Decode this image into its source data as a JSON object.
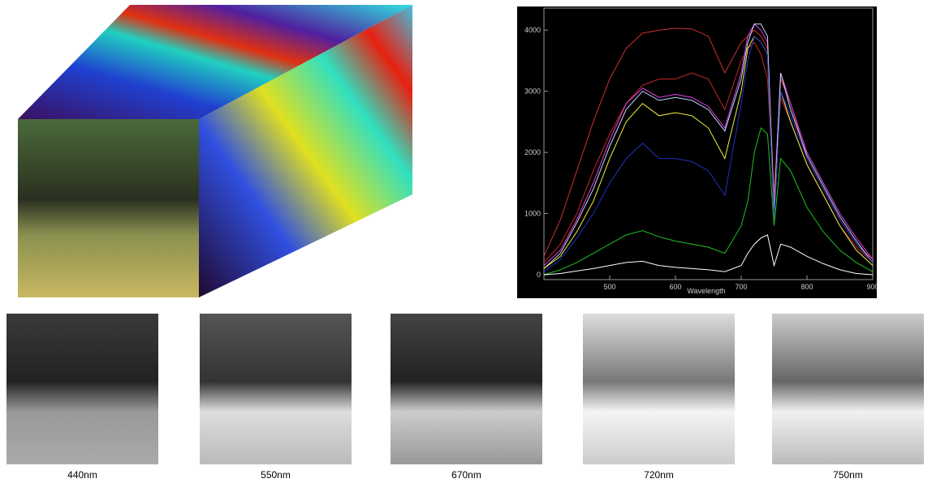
{
  "chart_data": {
    "type": "line",
    "xlabel": "Wavelength",
    "x": [
      400,
      425,
      450,
      475,
      500,
      525,
      550,
      575,
      600,
      625,
      650,
      675,
      700,
      710,
      720,
      730,
      740,
      750,
      760,
      775,
      800,
      825,
      850,
      875,
      900
    ],
    "series": [
      {
        "color": "#d03030",
        "values": [
          300,
          900,
          1700,
          2500,
          3200,
          3700,
          3950,
          4000,
          4030,
          4020,
          3900,
          3300,
          3800,
          3900,
          4000,
          3900,
          3700,
          1300,
          3200,
          2800,
          1900,
          1400,
          900,
          500,
          250
        ]
      },
      {
        "color": "#c02828",
        "values": [
          200,
          500,
          1000,
          1700,
          2300,
          2800,
          3100,
          3200,
          3200,
          3300,
          3200,
          2700,
          3500,
          3700,
          3800,
          3600,
          3200,
          1200,
          2900,
          2500,
          1800,
          1300,
          800,
          450,
          200
        ]
      },
      {
        "color": "#e040e0",
        "values": [
          150,
          400,
          900,
          1500,
          2200,
          2800,
          3050,
          2900,
          2950,
          2900,
          2750,
          2400,
          3300,
          3900,
          4100,
          4000,
          3800,
          1100,
          3300,
          2800,
          2000,
          1500,
          1000,
          600,
          250
        ]
      },
      {
        "color": "#c0d8ff",
        "values": [
          100,
          350,
          850,
          1400,
          2100,
          2700,
          3000,
          2850,
          2900,
          2850,
          2700,
          2350,
          3200,
          3800,
          4100,
          4100,
          3900,
          1000,
          3300,
          2700,
          1950,
          1450,
          950,
          550,
          200
        ]
      },
      {
        "color": "#f0f040",
        "values": [
          100,
          300,
          700,
          1200,
          1900,
          2500,
          2800,
          2600,
          2650,
          2600,
          2400,
          1900,
          3000,
          3700,
          3900,
          3800,
          3600,
          900,
          3000,
          2500,
          1800,
          1300,
          800,
          400,
          150
        ]
      },
      {
        "color": "#2030c0",
        "values": [
          50,
          250,
          600,
          1000,
          1500,
          1900,
          2150,
          1900,
          1900,
          1850,
          1700,
          1300,
          2800,
          3500,
          3900,
          3800,
          3600,
          900,
          3000,
          2600,
          1900,
          1400,
          900,
          500,
          200
        ]
      },
      {
        "color": "#20c020",
        "values": [
          0,
          80,
          200,
          350,
          500,
          650,
          720,
          620,
          550,
          500,
          450,
          350,
          800,
          1200,
          2000,
          2400,
          2300,
          800,
          1900,
          1700,
          1100,
          700,
          400,
          200,
          50
        ]
      },
      {
        "color": "#ffffff",
        "values": [
          0,
          20,
          60,
          100,
          150,
          200,
          220,
          150,
          120,
          100,
          80,
          50,
          150,
          350,
          500,
          600,
          650,
          150,
          500,
          450,
          300,
          180,
          80,
          20,
          0
        ]
      }
    ],
    "xlim": [
      400,
      900
    ],
    "xticks": [
      500,
      600,
      700,
      800,
      900
    ],
    "ylim": [
      -80,
      4360
    ],
    "yticks": [
      0,
      1000,
      2000,
      3000,
      4000
    ]
  },
  "bands": {
    "labels": [
      "440nm",
      "550nm",
      "670nm",
      "720nm",
      "750nm"
    ]
  }
}
